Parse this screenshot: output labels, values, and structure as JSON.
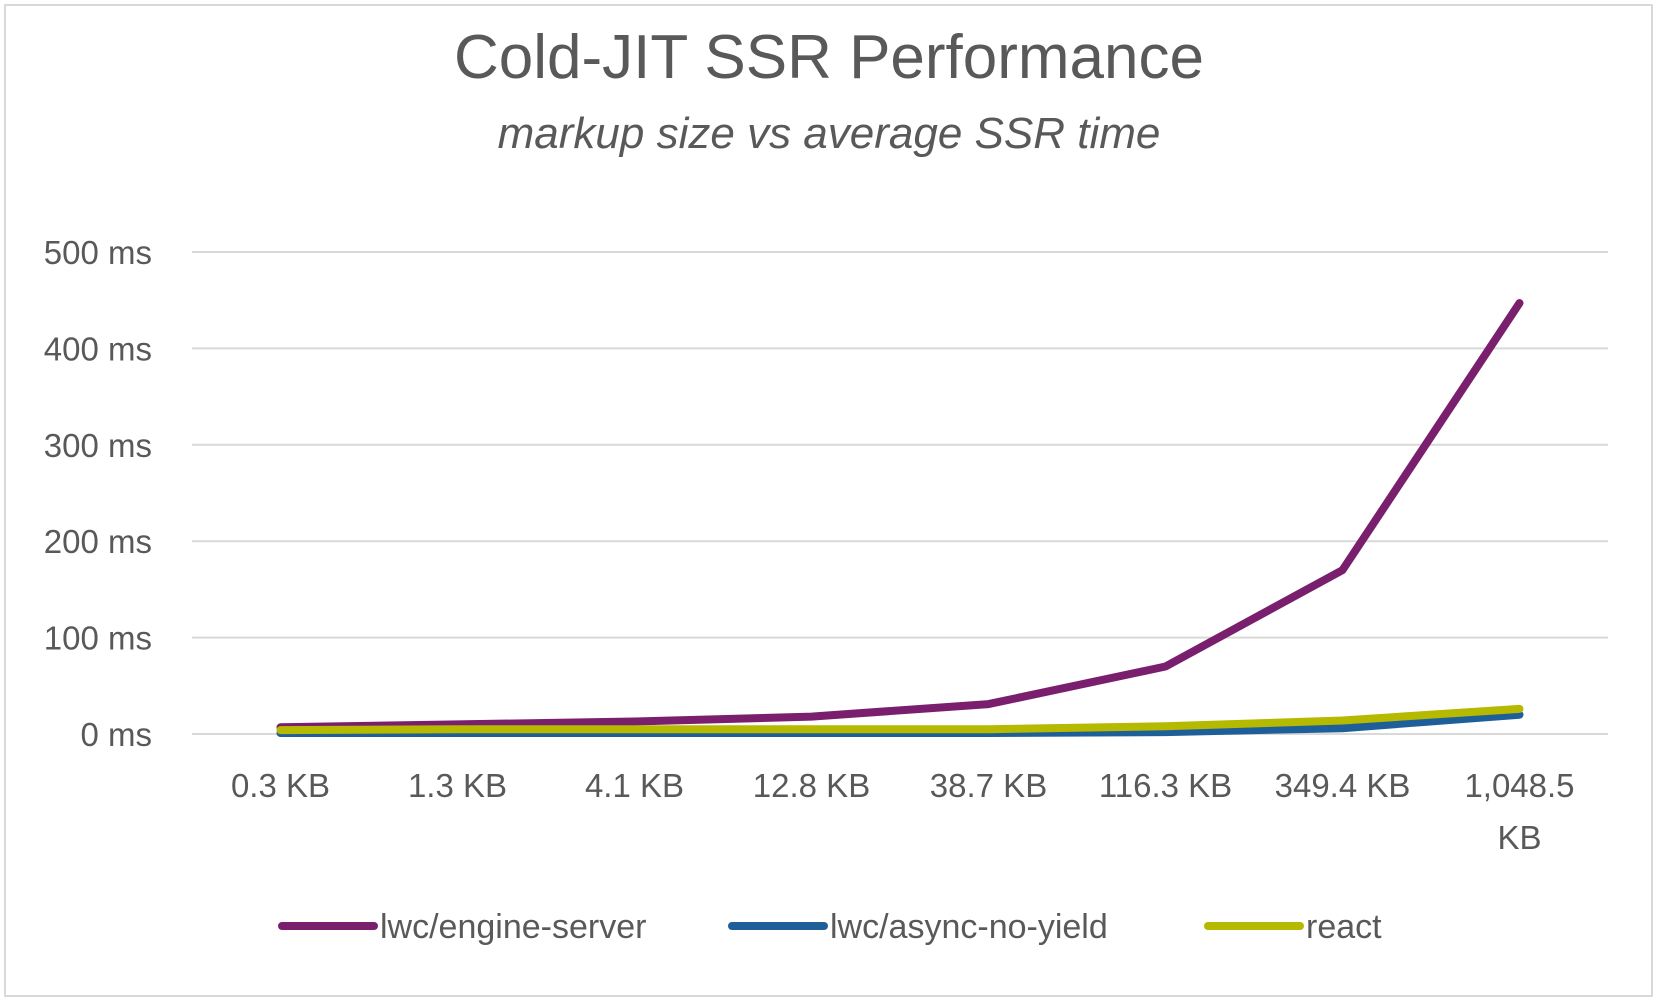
{
  "chart_data": {
    "type": "line",
    "title": "Cold-JIT SSR Performance",
    "subtitle": "markup size vs average SSR time",
    "xlabel": "",
    "ylabel": "",
    "categories": [
      "0.3 KB",
      "1.3 KB",
      "4.1 KB",
      "12.8 KB",
      "38.7 KB",
      "116.3 KB",
      "349.4 KB",
      "1,048.5 KB"
    ],
    "y_ticks": [
      "0 ms",
      "100 ms",
      "200 ms",
      "300 ms",
      "400 ms",
      "500 ms"
    ],
    "ylim": [
      0,
      500
    ],
    "grid": true,
    "legend_position": "bottom",
    "series": [
      {
        "name": "lwc/engine-server",
        "color": "#7a1f6e",
        "values": [
          7,
          10,
          13,
          18,
          31,
          70,
          170,
          447
        ]
      },
      {
        "name": "lwc/async-no-yield",
        "color": "#1f5f99",
        "values": [
          1,
          1,
          1,
          1,
          1,
          2,
          6,
          20
        ]
      },
      {
        "name": "react",
        "color": "#b5b900",
        "values": [
          4,
          5,
          5,
          5,
          5,
          8,
          14,
          26
        ]
      }
    ]
  }
}
